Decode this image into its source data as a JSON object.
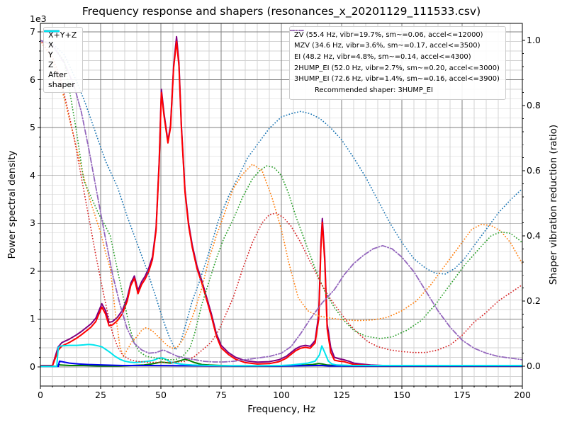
{
  "chart_data": {
    "type": "line",
    "title": "Frequency response and shapers (resonances_x_20201129_111533.csv)",
    "xlabel": "Frequency, Hz",
    "ylabel_left": "Power spectral density",
    "ylabel_right": "Shaper vibration reduction (ratio)",
    "y_left_offset_text": "1e3",
    "x_range": [
      0,
      200
    ],
    "x_ticks": [
      0,
      25,
      50,
      75,
      100,
      125,
      150,
      175,
      200
    ],
    "x_minor_step_hz": 5,
    "y_left_range_1e3": [
      0,
      7
    ],
    "y_left_ticks": [
      0,
      1,
      2,
      3,
      4,
      5,
      6,
      7
    ],
    "y_left_minor_step_1e3": 0.2,
    "y_right_range": [
      0.0,
      1.0
    ],
    "y_right_ticks": [
      "0.0",
      "0.2",
      "0.4",
      "0.6",
      "0.8",
      "1.0"
    ],
    "y_right_minor_step": 0.04,
    "grid": {
      "major_color": "#808080",
      "minor_color": "#d3d3d3",
      "background": "#ffffff"
    },
    "recommended_note": "Recommended shaper: 3HUMP_EI",
    "psd_series": [
      {
        "name": "X+Y+Z",
        "color": "#800080",
        "style": "solid",
        "axis": "left",
        "x": [
          0,
          5,
          7.4,
          7.9,
          8.4,
          9,
          12,
          15,
          17,
          19,
          21,
          23,
          25.5,
          27,
          28.5,
          30,
          32,
          34,
          36,
          37.5,
          39,
          40.5,
          42,
          43.5,
          45,
          46.5,
          48,
          49.3,
          50.2,
          51.3,
          52.9,
          54,
          55.3,
          56.5,
          57.5,
          58.5,
          60,
          61.5,
          63,
          65,
          67,
          69,
          71,
          73,
          75,
          78,
          81,
          85,
          90,
          95,
          99,
          102,
          104,
          106,
          108,
          110,
          112,
          114,
          115.5,
          116.4,
          117,
          118,
          119,
          120.5,
          122,
          124,
          126,
          128,
          130,
          133,
          137,
          142,
          150,
          160,
          170,
          180,
          190,
          200
        ],
        "y": [
          0.03,
          0.03,
          0.42,
          0.45,
          0.48,
          0.51,
          0.58,
          0.67,
          0.74,
          0.82,
          0.9,
          1.02,
          1.32,
          1.18,
          0.93,
          0.95,
          1.04,
          1.18,
          1.44,
          1.75,
          1.9,
          1.6,
          1.78,
          1.9,
          2.07,
          2.3,
          2.9,
          4.3,
          5.8,
          5.3,
          4.72,
          5.05,
          6.3,
          6.9,
          6.35,
          5.05,
          3.7,
          3.0,
          2.55,
          2.1,
          1.8,
          1.45,
          1.1,
          0.7,
          0.45,
          0.3,
          0.2,
          0.13,
          0.1,
          0.11,
          0.15,
          0.22,
          0.3,
          0.38,
          0.43,
          0.45,
          0.43,
          0.55,
          1.1,
          2.6,
          3.1,
          2.3,
          0.9,
          0.4,
          0.2,
          0.17,
          0.15,
          0.12,
          0.08,
          0.06,
          0.04,
          0.03,
          0.03,
          0.03,
          0.03,
          0.03,
          0.03,
          0.03
        ]
      },
      {
        "name": "X",
        "color": "#ff0000",
        "style": "solid",
        "axis": "left",
        "x": [
          0,
          5,
          7.4,
          7.9,
          8.4,
          9,
          12,
          15,
          17,
          19,
          21,
          23,
          25.5,
          27,
          28.5,
          30,
          32,
          34,
          36,
          37.5,
          39,
          40.5,
          42,
          43.5,
          45,
          46.5,
          48,
          49.3,
          50.2,
          51.3,
          52.9,
          54,
          55.3,
          56.5,
          57.5,
          58.5,
          60,
          61.5,
          63,
          65,
          67,
          69,
          71,
          73,
          75,
          78,
          81,
          85,
          90,
          95,
          99,
          102,
          104,
          106,
          108,
          110,
          112,
          114,
          115.5,
          116.4,
          117,
          118,
          119,
          120.5,
          122,
          124,
          126,
          128,
          130,
          133,
          137,
          142,
          150,
          160,
          170,
          180,
          190,
          200
        ],
        "y": [
          0.02,
          0.02,
          0.35,
          0.38,
          0.41,
          0.44,
          0.51,
          0.6,
          0.67,
          0.75,
          0.83,
          0.95,
          1.25,
          1.11,
          0.86,
          0.88,
          0.97,
          1.11,
          1.37,
          1.7,
          1.85,
          1.53,
          1.72,
          1.84,
          2.0,
          2.24,
          2.85,
          4.25,
          5.73,
          5.25,
          4.68,
          5.0,
          6.25,
          6.8,
          6.28,
          5.0,
          3.65,
          2.95,
          2.5,
          2.05,
          1.75,
          1.4,
          1.05,
          0.65,
          0.4,
          0.26,
          0.16,
          0.09,
          0.06,
          0.07,
          0.11,
          0.18,
          0.26,
          0.34,
          0.39,
          0.41,
          0.39,
          0.5,
          1.0,
          2.5,
          3.02,
          2.2,
          0.8,
          0.3,
          0.14,
          0.12,
          0.11,
          0.08,
          0.05,
          0.04,
          0.03,
          0.02,
          0.02,
          0.02,
          0.02,
          0.02,
          0.02,
          0.02
        ]
      },
      {
        "name": "Y",
        "color": "#008000",
        "style": "solid",
        "axis": "left",
        "x": [
          0,
          6.8,
          7.6,
          8.4,
          12,
          18,
          25,
          32,
          38,
          43,
          46,
          48,
          50,
          52,
          54,
          56,
          58,
          60,
          62,
          64,
          67,
          70,
          75,
          80,
          90,
          100,
          106,
          110,
          113,
          115.5,
          117,
          119,
          122,
          126,
          132,
          140,
          160,
          180,
          200
        ],
        "y": [
          0.01,
          0.01,
          0.05,
          0.04,
          0.03,
          0.03,
          0.02,
          0.02,
          0.03,
          0.04,
          0.06,
          0.08,
          0.1,
          0.09,
          0.08,
          0.1,
          0.13,
          0.16,
          0.13,
          0.09,
          0.05,
          0.04,
          0.03,
          0.02,
          0.02,
          0.02,
          0.03,
          0.04,
          0.05,
          0.07,
          0.06,
          0.04,
          0.03,
          0.02,
          0.02,
          0.02,
          0.02,
          0.02,
          0.02
        ]
      },
      {
        "name": "Z",
        "color": "#0000ee",
        "style": "solid",
        "axis": "left",
        "x": [
          0,
          7.4,
          7.9,
          9,
          12,
          16,
          20,
          26,
          34,
          45,
          60,
          80,
          100,
          115,
          117,
          120,
          140,
          170,
          200
        ],
        "y": [
          0.01,
          0.01,
          0.12,
          0.11,
          0.08,
          0.06,
          0.05,
          0.04,
          0.03,
          0.03,
          0.025,
          0.02,
          0.02,
          0.03,
          0.03,
          0.02,
          0.02,
          0.02,
          0.02
        ]
      },
      {
        "name": "After\nshaper",
        "color": "#00e5ee",
        "style": "solid",
        "axis": "left",
        "x": [
          0,
          6.8,
          7.4,
          8,
          9,
          12,
          15,
          18,
          20,
          22,
          24,
          25.5,
          27,
          29,
          31,
          33,
          35,
          37,
          39,
          41,
          43,
          45,
          47,
          49,
          50.5,
          52,
          54,
          56,
          58,
          60,
          63,
          66,
          70,
          75,
          80,
          90,
          100,
          104,
          108,
          111,
          114,
          115.8,
          116.8,
          118,
          119.5,
          121,
          123,
          126,
          130,
          140,
          160,
          180,
          200
        ],
        "y": [
          0.01,
          0.01,
          0.4,
          0.43,
          0.44,
          0.45,
          0.45,
          0.46,
          0.47,
          0.46,
          0.44,
          0.42,
          0.37,
          0.3,
          0.22,
          0.16,
          0.12,
          0.1,
          0.09,
          0.1,
          0.11,
          0.12,
          0.14,
          0.18,
          0.19,
          0.16,
          0.1,
          0.08,
          0.06,
          0.05,
          0.04,
          0.035,
          0.03,
          0.025,
          0.025,
          0.025,
          0.03,
          0.04,
          0.06,
          0.08,
          0.12,
          0.25,
          0.44,
          0.3,
          0.12,
          0.06,
          0.04,
          0.035,
          0.03,
          0.03,
          0.03,
          0.03,
          0.03
        ]
      }
    ],
    "shaper_series": [
      {
        "name": "ZV",
        "label": "ZV (55.4 Hz, vibr=19.7%, sm~=0.06, accel<=12000)",
        "color": "#1f77b4",
        "style": "dotted",
        "axis": "right",
        "x": [
          0,
          5,
          10,
          15,
          18.5,
          23,
          27,
          32,
          36,
          40,
          44,
          48,
          51,
          53.5,
          56,
          58,
          60,
          63,
          66,
          70,
          74,
          78,
          82,
          86,
          90,
          95,
          100,
          104,
          108,
          112,
          116,
          120,
          125,
          130,
          135,
          140,
          145,
          150,
          155,
          160,
          164,
          168,
          172,
          176,
          180,
          185,
          190,
          195,
          200
        ],
        "y": [
          1.0,
          0.99,
          0.955,
          0.875,
          0.81,
          0.715,
          0.63,
          0.55,
          0.46,
          0.38,
          0.3,
          0.21,
          0.14,
          0.09,
          0.05,
          0.07,
          0.12,
          0.2,
          0.26,
          0.35,
          0.45,
          0.52,
          0.58,
          0.64,
          0.68,
          0.73,
          0.765,
          0.775,
          0.782,
          0.775,
          0.76,
          0.735,
          0.695,
          0.64,
          0.58,
          0.51,
          0.44,
          0.38,
          0.33,
          0.3,
          0.285,
          0.283,
          0.3,
          0.33,
          0.37,
          0.42,
          0.47,
          0.51,
          0.545
        ]
      },
      {
        "name": "MZV",
        "label": "MZV (34.6 Hz, vibr=3.6%, sm~=0.17, accel<=3500)",
        "color": "#ff7f0e",
        "style": "dotted",
        "axis": "right",
        "x": [
          0,
          5,
          10,
          15,
          18,
          21,
          25,
          27,
          29,
          31,
          33,
          34.5,
          36,
          38,
          40,
          42,
          43.5,
          45,
          47,
          49,
          51,
          53,
          55,
          57,
          59,
          61,
          64,
          67,
          70,
          73,
          76,
          80,
          84,
          88,
          92,
          96,
          100,
          103,
          107,
          111,
          115,
          120,
          126,
          132,
          138,
          144,
          150,
          156,
          162,
          168,
          174,
          179,
          183,
          187,
          191,
          195,
          200
        ],
        "y": [
          1.0,
          0.94,
          0.82,
          0.67,
          0.58,
          0.5,
          0.41,
          0.35,
          0.3,
          0.17,
          0.06,
          0.03,
          0.05,
          0.075,
          0.09,
          0.11,
          0.118,
          0.115,
          0.105,
          0.09,
          0.075,
          0.062,
          0.055,
          0.06,
          0.08,
          0.11,
          0.17,
          0.24,
          0.33,
          0.4,
          0.46,
          0.545,
          0.59,
          0.62,
          0.6,
          0.52,
          0.42,
          0.32,
          0.21,
          0.17,
          0.155,
          0.148,
          0.142,
          0.14,
          0.142,
          0.15,
          0.17,
          0.2,
          0.25,
          0.31,
          0.37,
          0.42,
          0.435,
          0.432,
          0.415,
          0.38,
          0.315
        ]
      },
      {
        "name": "EI",
        "label": "EI (48.2 Hz, vibr=4.8%, sm~=0.14, accel<=4300)",
        "color": "#2ca02c",
        "style": "dotted",
        "axis": "right",
        "x": [
          0,
          5,
          10,
          12,
          15,
          18,
          21,
          24,
          27,
          29,
          31,
          33,
          35,
          37,
          39,
          41,
          44,
          48,
          52,
          56,
          59,
          62,
          64,
          67,
          70,
          73,
          76,
          80,
          84,
          88,
          91,
          94,
          97,
          100,
          103,
          106,
          110,
          114,
          118,
          122,
          126,
          130,
          135,
          141,
          146,
          152,
          158,
          164,
          170,
          176,
          182,
          187,
          191,
          195,
          200
        ],
        "y": [
          1.0,
          0.985,
          0.935,
          0.85,
          0.72,
          0.57,
          0.52,
          0.47,
          0.43,
          0.4,
          0.33,
          0.26,
          0.19,
          0.12,
          0.07,
          0.045,
          0.03,
          0.025,
          0.02,
          0.02,
          0.03,
          0.055,
          0.1,
          0.19,
          0.26,
          0.33,
          0.39,
          0.45,
          0.52,
          0.575,
          0.6,
          0.615,
          0.61,
          0.585,
          0.53,
          0.46,
          0.38,
          0.3,
          0.23,
          0.18,
          0.14,
          0.11,
          0.092,
          0.085,
          0.09,
          0.11,
          0.14,
          0.19,
          0.25,
          0.31,
          0.36,
          0.4,
          0.412,
          0.408,
          0.38
        ]
      },
      {
        "name": "2HUMP_EI",
        "label": "2HUMP_EI (52.0 Hz, vibr=2.7%, sm~=0.20, accel<=3000)",
        "color": "#d62728",
        "style": "dotted",
        "axis": "right",
        "x": [
          0,
          5,
          8,
          11,
          14,
          17,
          20,
          23,
          26,
          28,
          30,
          32,
          34,
          37,
          40,
          45,
          50,
          55,
          60,
          64,
          68,
          71,
          74,
          77,
          80,
          84,
          88,
          92,
          95,
          98,
          101,
          104,
          108,
          112,
          116,
          120,
          124,
          128,
          132,
          136,
          140,
          145,
          150,
          155,
          160,
          165,
          170,
          175,
          180,
          185,
          190,
          195,
          200
        ],
        "y": [
          1.0,
          0.95,
          0.89,
          0.8,
          0.7,
          0.58,
          0.46,
          0.34,
          0.23,
          0.16,
          0.1,
          0.06,
          0.035,
          0.02,
          0.015,
          0.012,
          0.012,
          0.012,
          0.015,
          0.03,
          0.055,
          0.075,
          0.11,
          0.16,
          0.21,
          0.3,
          0.38,
          0.44,
          0.465,
          0.47,
          0.455,
          0.43,
          0.38,
          0.32,
          0.26,
          0.21,
          0.17,
          0.13,
          0.1,
          0.075,
          0.06,
          0.05,
          0.045,
          0.042,
          0.042,
          0.05,
          0.065,
          0.095,
          0.135,
          0.165,
          0.2,
          0.225,
          0.25
        ]
      },
      {
        "name": "3HUMP_EI",
        "label": "3HUMP_EI (72.6 Hz, vibr=1.4%, sm~=0.16, accel<=3900)",
        "color": "#9467bd",
        "style": "dashdot",
        "axis": "right",
        "x": [
          0,
          5,
          10,
          14,
          17,
          20,
          23,
          26.8,
          30,
          33,
          36,
          39,
          42,
          45,
          48,
          51,
          54,
          57,
          60,
          64,
          68,
          72,
          76,
          80,
          85,
          90,
          95,
          100,
          104,
          108,
          112,
          117,
          122,
          126,
          130,
          134,
          138,
          142,
          146,
          150,
          155,
          160,
          165,
          170,
          175,
          180,
          185,
          190,
          195,
          200
        ],
        "y": [
          1.0,
          0.985,
          0.93,
          0.86,
          0.78,
          0.67,
          0.55,
          0.4,
          0.28,
          0.19,
          0.115,
          0.07,
          0.05,
          0.04,
          0.042,
          0.05,
          0.04,
          0.03,
          0.025,
          0.02,
          0.015,
          0.013,
          0.013,
          0.015,
          0.02,
          0.025,
          0.03,
          0.04,
          0.06,
          0.1,
          0.145,
          0.195,
          0.235,
          0.28,
          0.315,
          0.34,
          0.36,
          0.37,
          0.36,
          0.335,
          0.29,
          0.23,
          0.17,
          0.12,
          0.08,
          0.055,
          0.04,
          0.03,
          0.025,
          0.02
        ]
      }
    ]
  }
}
